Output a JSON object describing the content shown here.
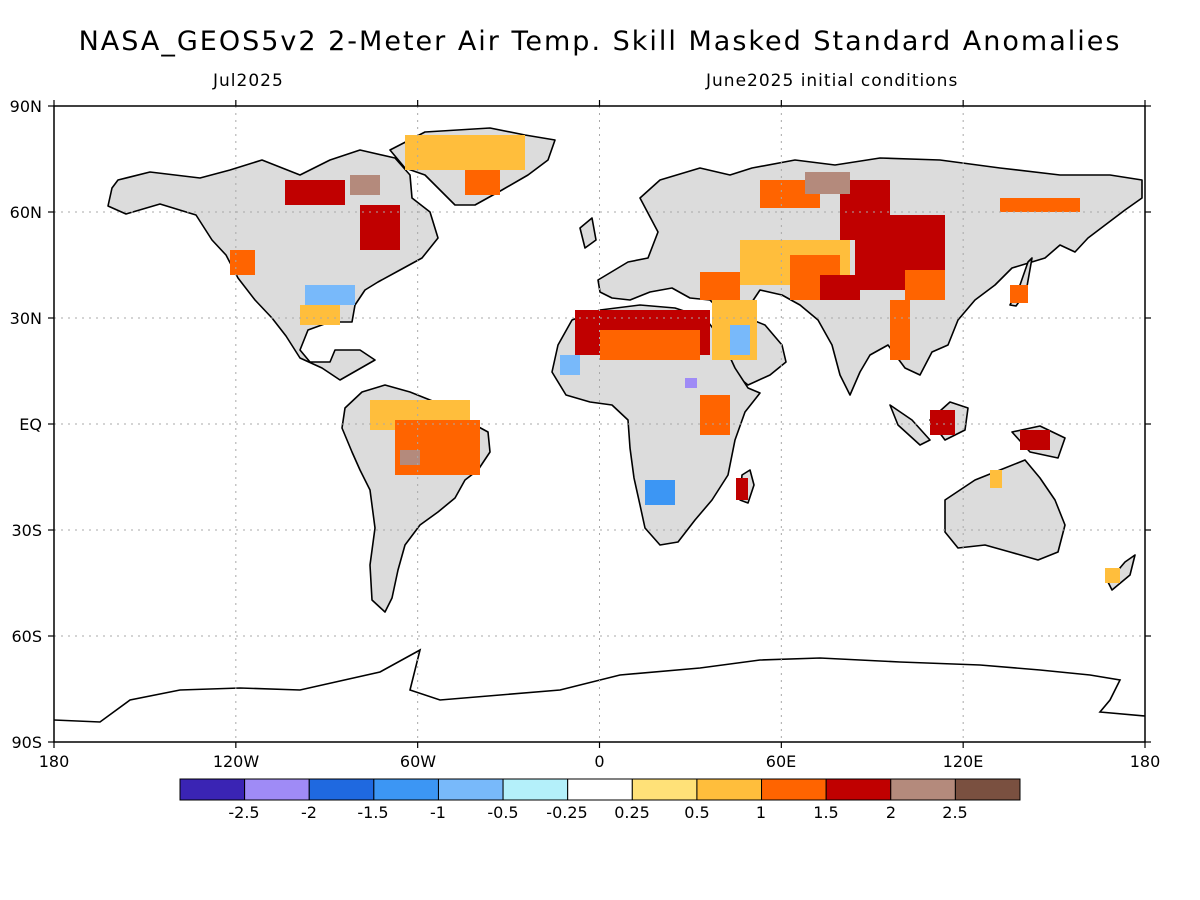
{
  "header": {
    "title": "NASA_GEOS5v2 2-Meter Air Temp. Skill Masked Standard Anomalies",
    "valid_month": "Jul2025",
    "init_conditions": "June2025 initial conditions"
  },
  "axes": {
    "lon_labels": [
      "180",
      "120W",
      "60W",
      "0",
      "60E",
      "120E",
      "180"
    ],
    "lat_labels": [
      "90N",
      "60N",
      "30N",
      "EQ",
      "30S",
      "60S",
      "90S"
    ]
  },
  "colorbar": {
    "colors": [
      "#3a24b4",
      "#9f8bf6",
      "#1f69e0",
      "#3c96f4",
      "#78b9fa",
      "#b4f0fa",
      "#ffffff",
      "#ffe178",
      "#ffbe3c",
      "#ff6400",
      "#c00000",
      "#b48a7c",
      "#7a5040"
    ],
    "labels": [
      "-2.5",
      "-2",
      "-1.5",
      "-1",
      "-0.5",
      "-0.25",
      "0.25",
      "0.5",
      "1",
      "1.5",
      "2",
      "2.5"
    ]
  },
  "colors": {
    "land_masked": "#dcdcdc",
    "coastline": "#000000",
    "grid": "#a8a8a8"
  }
}
